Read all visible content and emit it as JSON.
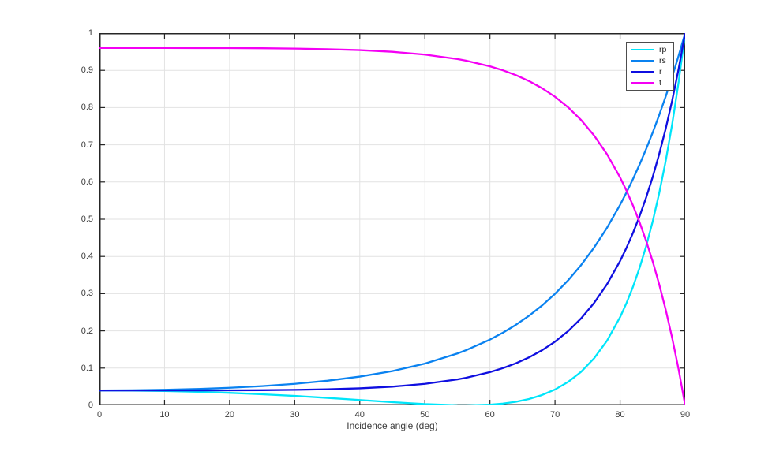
{
  "figure": {
    "background": "#FFFFFF"
  },
  "chart_data": {
    "type": "line",
    "title": "",
    "xlabel": "Incidence angle (deg)",
    "ylabel": "",
    "xlim": [
      0,
      90
    ],
    "ylim": [
      0,
      1
    ],
    "grid": true,
    "legend_position": "top-right",
    "legend": [
      "rp",
      "rs",
      "r",
      "t"
    ],
    "x_ticks": [
      0,
      10,
      20,
      30,
      40,
      50,
      60,
      70,
      80,
      90
    ],
    "x_tick_labels": [
      "0",
      "10",
      "20",
      "30",
      "40",
      "50",
      "60",
      "70",
      "80",
      "90"
    ],
    "y_ticks": [
      0,
      0.1,
      0.2,
      0.3,
      0.4,
      0.5,
      0.6,
      0.7,
      0.8,
      0.9,
      1
    ],
    "y_tick_labels": [
      "0",
      "0.1",
      "0.2",
      "0.3",
      "0.4",
      "0.5",
      "0.6",
      "0.7",
      "0.8",
      "0.9",
      "1"
    ],
    "colors": {
      "grid": "#E2E2E2",
      "spine": "#262626",
      "tick_label": "#3C3C3C",
      "legend_border": "#4D4D4D"
    },
    "x": [
      0,
      5,
      10,
      15,
      20,
      25,
      30,
      35,
      40,
      45,
      50,
      55,
      56.3,
      60,
      62,
      64,
      66,
      68,
      70,
      72,
      74,
      76,
      78,
      80,
      81,
      82,
      83,
      84,
      85,
      86,
      87,
      88,
      89,
      90
    ],
    "series": [
      {
        "name": "rp",
        "color": "#00E5FA",
        "values": [
          0.04,
          0.0396,
          0.0384,
          0.0363,
          0.0335,
          0.0297,
          0.0253,
          0.02,
          0.0143,
          0.0085,
          0.0033,
          0.0002,
          0.0,
          0.0018,
          0.0047,
          0.0096,
          0.017,
          0.0276,
          0.0425,
          0.0627,
          0.0899,
          0.1261,
          0.1739,
          0.2368,
          0.2753,
          0.3193,
          0.3696,
          0.4273,
          0.4932,
          0.5688,
          0.6554,
          0.7548,
          0.8689,
          1.0
        ]
      },
      {
        "name": "rs",
        "color": "#0A82F0",
        "values": [
          0.04,
          0.0404,
          0.0417,
          0.0438,
          0.0471,
          0.0516,
          0.0578,
          0.0661,
          0.0772,
          0.092,
          0.112,
          0.1393,
          0.1479,
          0.1766,
          0.1952,
          0.2164,
          0.2405,
          0.2681,
          0.2996,
          0.3356,
          0.3767,
          0.4236,
          0.4773,
          0.5386,
          0.5724,
          0.6086,
          0.6472,
          0.6885,
          0.7323,
          0.7793,
          0.8293,
          0.8826,
          0.9395,
          1.0
        ]
      },
      {
        "name": "r",
        "color": "#0F0FE0",
        "values": [
          0.04,
          0.04,
          0.04,
          0.0401,
          0.0403,
          0.0407,
          0.0415,
          0.0431,
          0.0457,
          0.0502,
          0.0577,
          0.0697,
          0.0739,
          0.0892,
          0.1,
          0.113,
          0.1288,
          0.1479,
          0.171,
          0.1991,
          0.2333,
          0.2749,
          0.3256,
          0.3877,
          0.4238,
          0.4639,
          0.5084,
          0.5579,
          0.6128,
          0.6741,
          0.7424,
          0.8187,
          0.9042,
          1.0
        ]
      },
      {
        "name": "t",
        "color": "#F400F4",
        "values": [
          0.96,
          0.96,
          0.96,
          0.9599,
          0.9597,
          0.9593,
          0.9585,
          0.9569,
          0.9543,
          0.9498,
          0.9423,
          0.9303,
          0.9261,
          0.9108,
          0.9,
          0.887,
          0.8712,
          0.8521,
          0.829,
          0.8009,
          0.7667,
          0.7251,
          0.6744,
          0.6123,
          0.5762,
          0.5361,
          0.4916,
          0.4421,
          0.3872,
          0.3259,
          0.2576,
          0.1813,
          0.0958,
          0.0
        ]
      }
    ]
  }
}
